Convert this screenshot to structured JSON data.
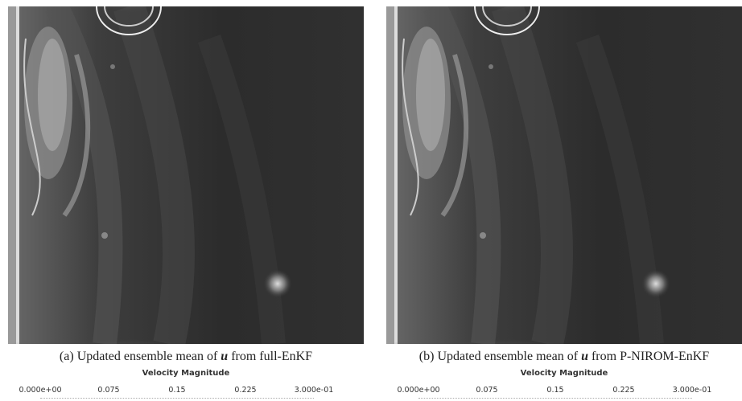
{
  "panels": [
    {
      "label": "(a)",
      "caption_before": "Updated ensemble mean of",
      "caption_symbol": "u",
      "caption_after": "from full-EnKF",
      "colorbar": {
        "title": "Velocity Magnitude",
        "ticks": [
          "0.000e+00",
          "0.075",
          "0.15",
          "0.225",
          "3.000e-01"
        ]
      }
    },
    {
      "label": "(b)",
      "caption_before": "Updated ensemble mean of",
      "caption_symbol": "u",
      "caption_after": "from P-NIROM-EnKF",
      "colorbar": {
        "title": "Velocity Magnitude",
        "ticks": [
          "0.000e+00",
          "0.075",
          "0.15",
          "0.225",
          "3.000e-01"
        ]
      }
    }
  ]
}
